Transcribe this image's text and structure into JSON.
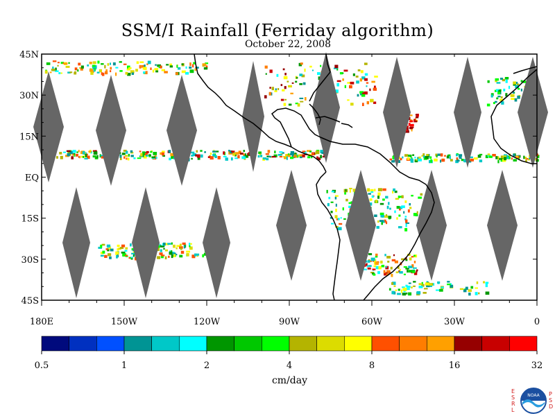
{
  "title": "SSM/I Rainfall (Ferriday algorithm)",
  "subtitle": "October 22, 2008",
  "map": {
    "lat_labels": [
      "45N",
      "30N",
      "15N",
      "EQ",
      "15S",
      "30S",
      "45S"
    ],
    "lon_labels": [
      "180E",
      "150W",
      "120W",
      "90W",
      "60W",
      "30W",
      "0"
    ],
    "lat_values": [
      45,
      30,
      15,
      0,
      -15,
      -30,
      -45
    ],
    "lon_values": [
      -180,
      -150,
      -120,
      -90,
      -60,
      -30,
      0
    ],
    "lat_range": [
      -45,
      45
    ],
    "lon_range": [
      -180,
      0
    ],
    "gap_color": "#666666",
    "coast_color": "#000000"
  },
  "colorbar": {
    "unit": "cm/day",
    "tick_labels": [
      "0.5",
      "1",
      "2",
      "4",
      "8",
      "16",
      "32"
    ],
    "colors": [
      "#000a7d",
      "#0030c0",
      "#0050ff",
      "#009494",
      "#00c8c8",
      "#00ffff",
      "#009600",
      "#00c800",
      "#00ff00",
      "#b4b400",
      "#dcdc00",
      "#ffff00",
      "#ff5000",
      "#ff7d00",
      "#ffa000",
      "#960000",
      "#c80000",
      "#ff0000"
    ]
  },
  "logo": {
    "left_letters": "ESRL",
    "right_letters": "PSD",
    "emblem_text": "NOAA"
  }
}
